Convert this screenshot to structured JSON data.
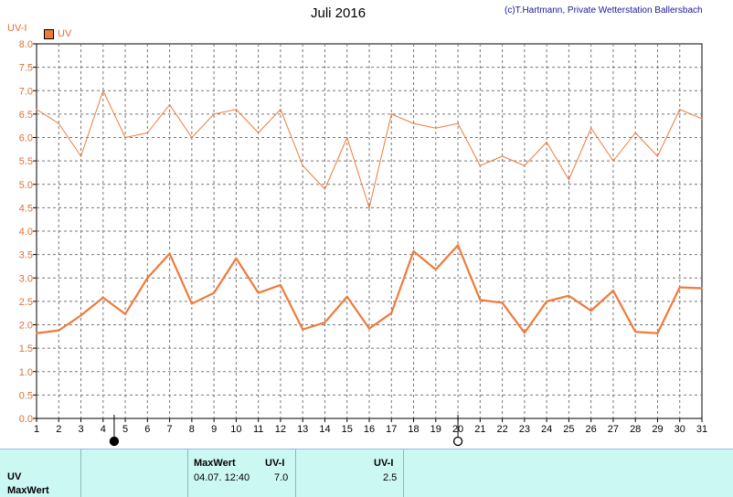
{
  "header": {
    "title": "Juli 2016",
    "credit": "(c)T.Hartmann, Private Wetterstation Ballersbach",
    "y_unit": "UV-I"
  },
  "legend": {
    "label": "UV",
    "color": "#f07a3a"
  },
  "chart_data": {
    "type": "line",
    "x": [
      1,
      2,
      3,
      4,
      5,
      6,
      7,
      8,
      9,
      10,
      11,
      12,
      13,
      14,
      15,
      16,
      17,
      18,
      19,
      20,
      21,
      22,
      23,
      24,
      25,
      26,
      27,
      28,
      29,
      30,
      31
    ],
    "ylim": [
      0,
      8
    ],
    "yticks": [
      "0.0",
      "0.5",
      "1.0",
      "1.5",
      "2.0",
      "2.5",
      "3.0",
      "3.5",
      "4.0",
      "4.5",
      "5.0",
      "5.5",
      "6.0",
      "6.5",
      "7.0",
      "7.5",
      "8.0"
    ],
    "xticks": [
      "1",
      "2",
      "3",
      "4",
      "5",
      "6",
      "7",
      "8",
      "9",
      "10",
      "11",
      "12",
      "13",
      "14",
      "15",
      "16",
      "17",
      "18",
      "19",
      "20",
      "21",
      "22",
      "23",
      "24",
      "25",
      "26",
      "27",
      "28",
      "29",
      "30",
      "31"
    ],
    "grid": true,
    "series": [
      {
        "name": "UV",
        "style": "max",
        "color": "#f07a3a",
        "values": [
          6.6,
          6.3,
          5.6,
          7.0,
          6.0,
          6.1,
          6.7,
          6.0,
          6.5,
          6.6,
          6.1,
          6.6,
          5.4,
          4.9,
          6.0,
          4.5,
          6.5,
          6.3,
          6.2,
          6.3,
          5.4,
          5.6,
          5.4,
          5.9,
          5.1,
          6.2,
          5.5,
          6.1,
          5.6,
          6.6,
          6.4
        ]
      },
      {
        "name": "UV",
        "style": "mean",
        "color": "#f07a3a",
        "values": [
          1.82,
          1.88,
          2.2,
          2.58,
          2.23,
          3.0,
          3.52,
          2.45,
          2.68,
          3.42,
          2.68,
          2.85,
          1.9,
          2.05,
          2.6,
          1.92,
          2.25,
          3.57,
          3.18,
          3.7,
          2.53,
          2.47,
          1.83,
          2.5,
          2.62,
          2.3,
          2.73,
          1.85,
          1.82,
          2.8,
          2.78
        ]
      }
    ],
    "moon_markers": [
      {
        "day": 4.5,
        "phase": "new-moon"
      },
      {
        "day": 20,
        "phase": "full-moon"
      }
    ]
  },
  "panel": {
    "row_label_1": "UV",
    "row_label_2": "MaxWert",
    "max_header": "MaxWert",
    "max_unit": "UV-I",
    "max_datetime": "04.07.  12:40",
    "max_value": "7.0",
    "avg_unit": "UV-I",
    "avg_value": "2.5"
  }
}
